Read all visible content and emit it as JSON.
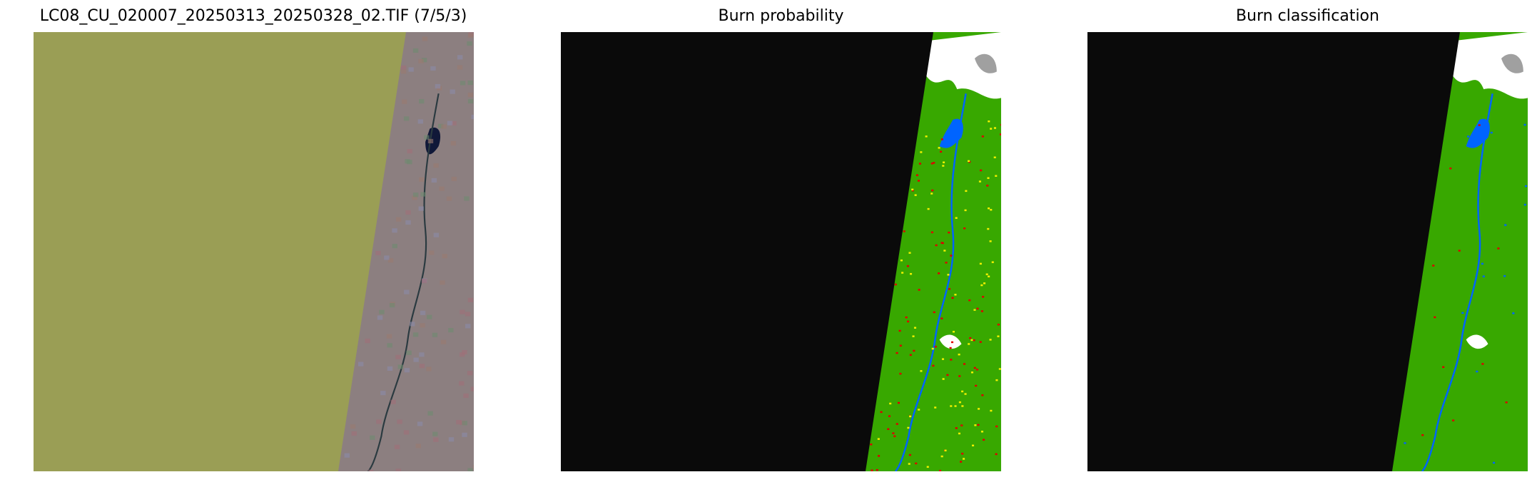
{
  "panels": [
    {
      "title": "LC08_CU_020007_20250313_20250328_02.TIF (7/5/3)",
      "nodata_color": "#9a9e55",
      "land_color": "#8c7f80"
    },
    {
      "title": "Burn probability",
      "nodata_color": "#0a0a0a",
      "land_color": "#38a800"
    },
    {
      "title": "Burn classification",
      "nodata_color": "#0a0a0a",
      "land_color": "#38a800"
    }
  ],
  "colors": {
    "water": "#0064ff",
    "cloud": "#ffffff",
    "shadow": "#a0a0a0",
    "burn_high": "#e00000",
    "burn_low": "#f0f000",
    "lake_rgb": "#101838"
  }
}
